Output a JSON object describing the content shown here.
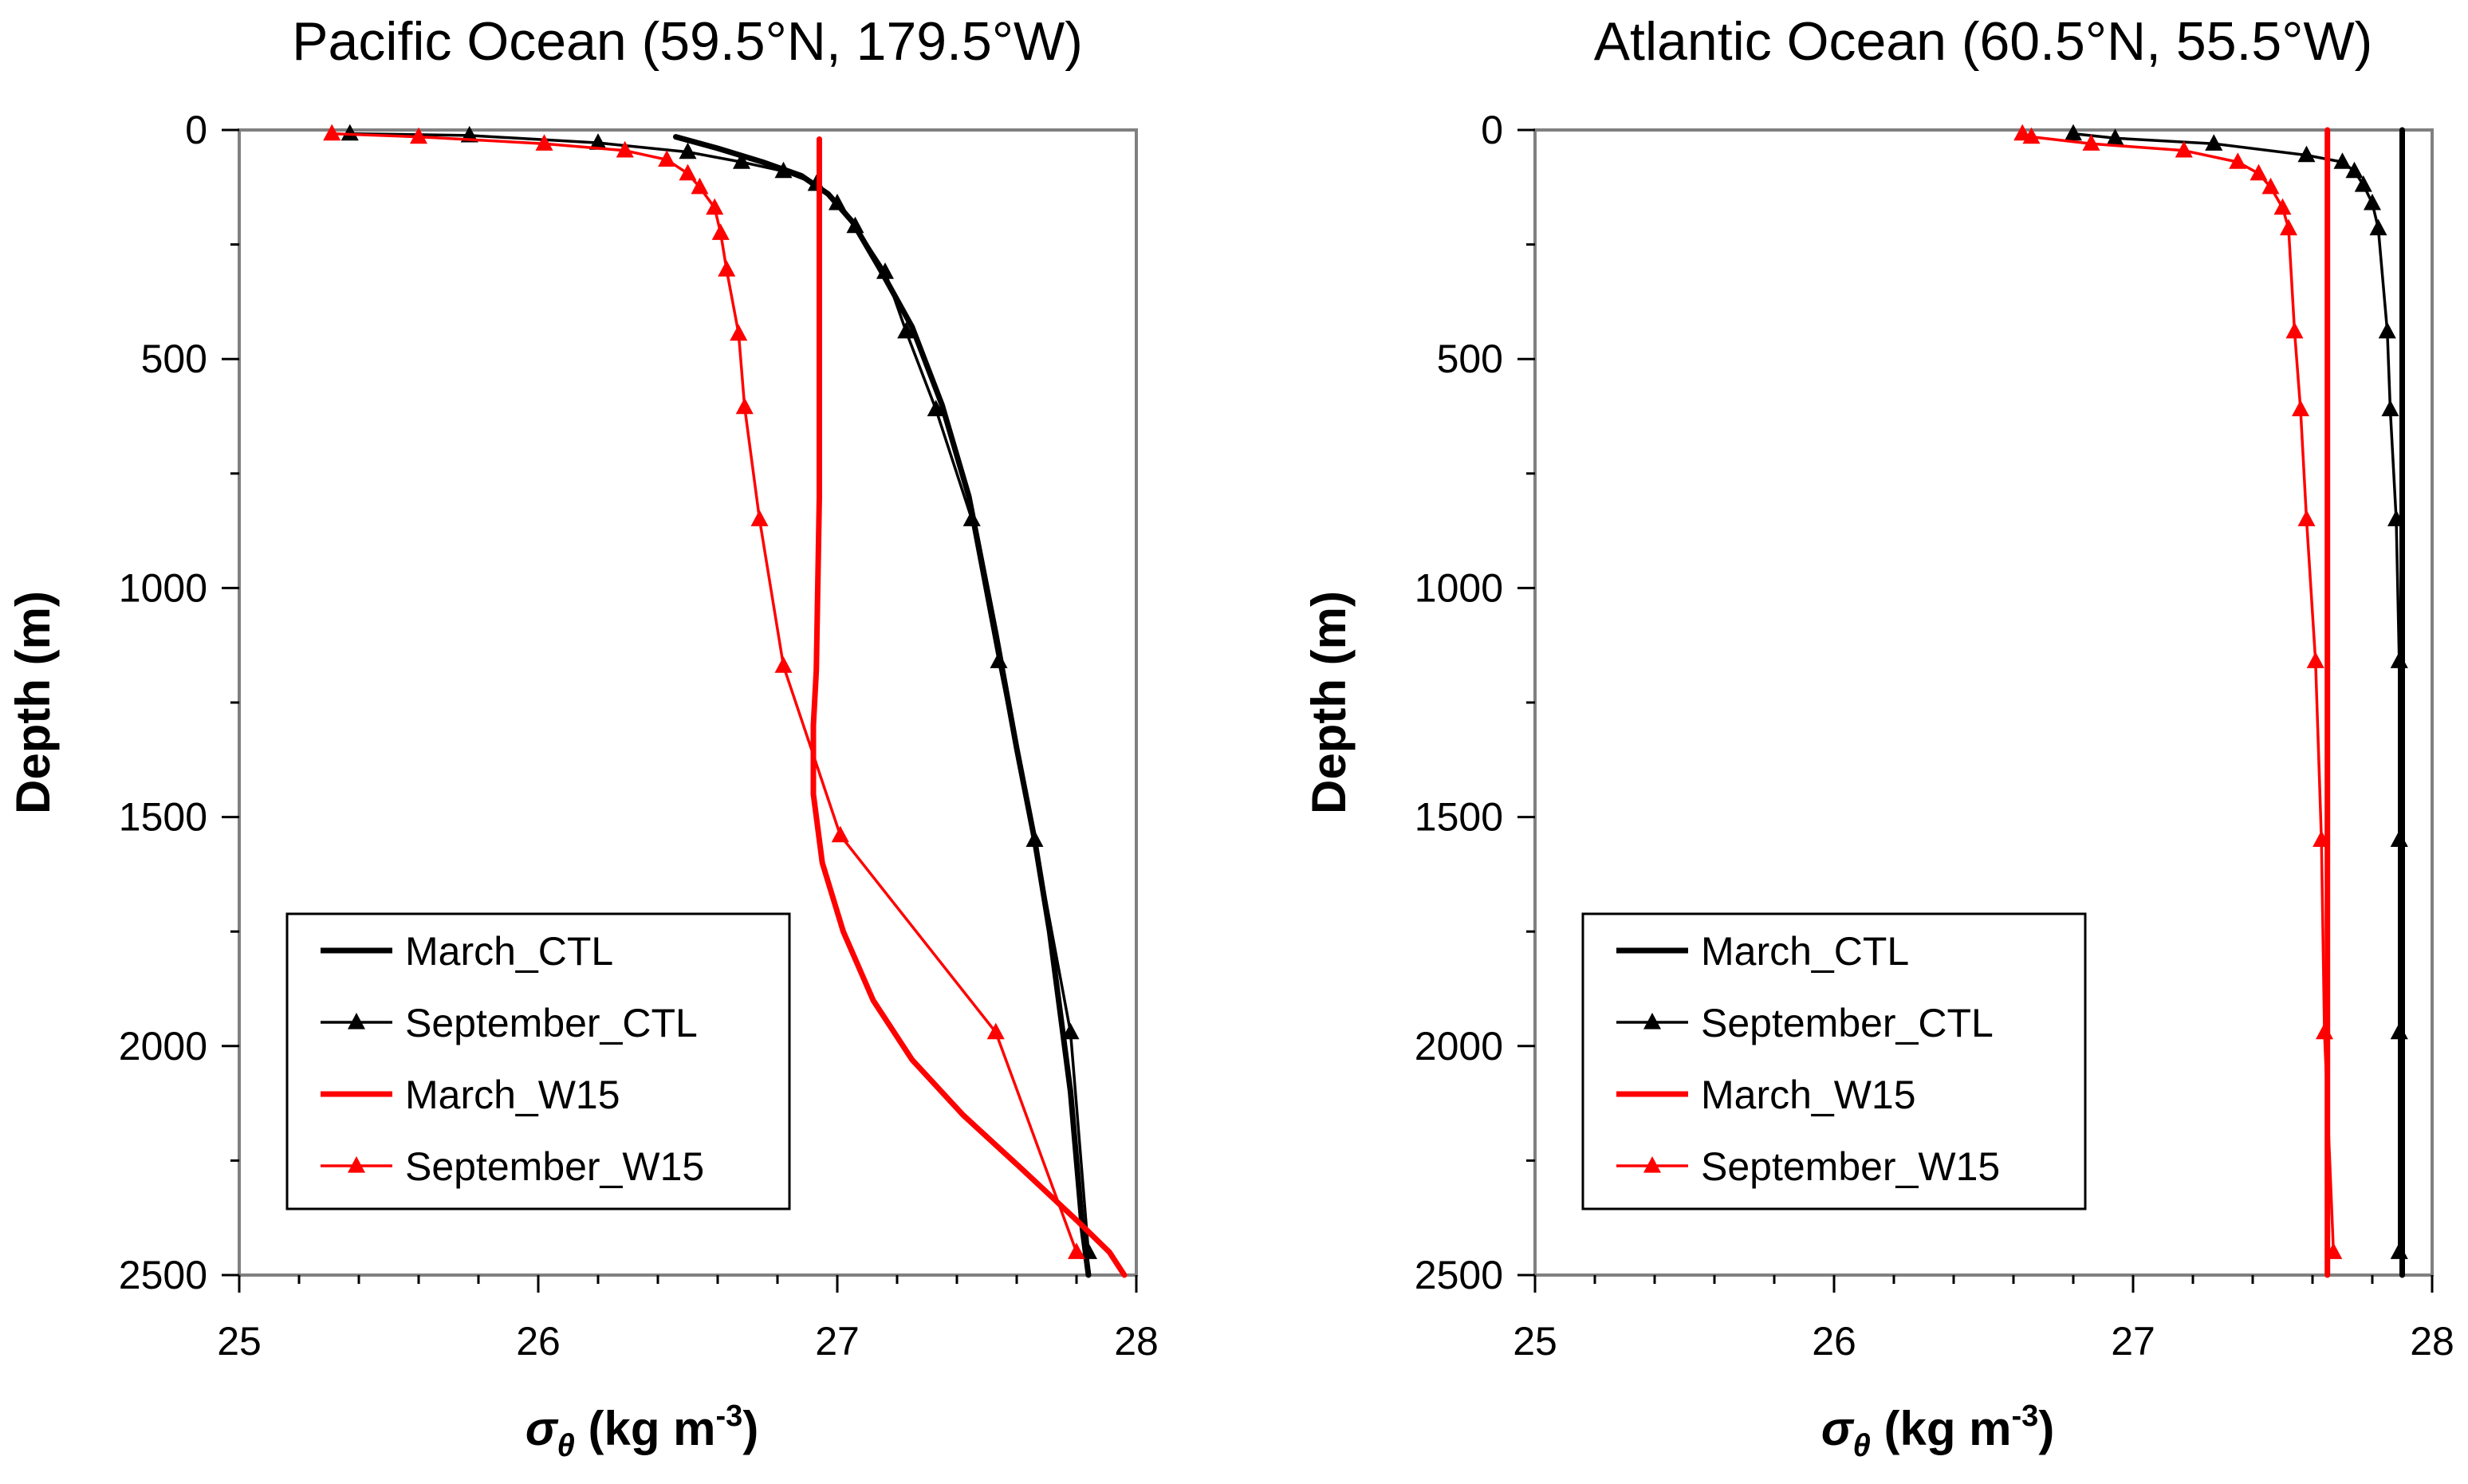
{
  "chart_data": [
    {
      "type": "line",
      "title": "Pacific Ocean (59.5°N, 179.5°W)",
      "xlabel_symbol": "σ",
      "xlabel_sub": "θ",
      "xlabel_unit": " (kg m",
      "xlabel_exp": "-3",
      "xlabel_close": ")",
      "ylabel": "Depth (m)",
      "xlim": [
        25,
        28
      ],
      "ylim": [
        2500,
        0
      ],
      "xticks": [
        25,
        26,
        27,
        28
      ],
      "yticks": [
        0,
        500,
        1000,
        1500,
        2000,
        2500
      ],
      "legend": "lower-left",
      "series": [
        {
          "name": "March_CTL",
          "color": "#000000",
          "markers": false,
          "style": "thick",
          "x": [
            26.46,
            26.6,
            26.75,
            26.88,
            26.97,
            27.05,
            27.14,
            27.25,
            27.35,
            27.44,
            27.53,
            27.6,
            27.66,
            27.71,
            27.75,
            27.78,
            27.8,
            27.82,
            27.84
          ],
          "y": [
            15,
            40,
            70,
            100,
            140,
            200,
            300,
            430,
            600,
            800,
            1100,
            1350,
            1550,
            1750,
            1950,
            2100,
            2250,
            2400,
            2500
          ]
        },
        {
          "name": "September_CTL",
          "color": "#000000",
          "markers": true,
          "style": "thin",
          "x": [
            25.37,
            25.77,
            26.2,
            26.5,
            26.68,
            26.82,
            26.93,
            27.0,
            27.06,
            27.16,
            27.23,
            27.33,
            27.45,
            27.54,
            27.66,
            27.78,
            27.84
          ],
          "y": [
            8,
            12,
            28,
            48,
            70,
            90,
            118,
            160,
            210,
            310,
            440,
            610,
            850,
            1160,
            1550,
            1970,
            2450
          ]
        },
        {
          "name": "March_W15",
          "color": "#ff0000",
          "markers": false,
          "style": "thick",
          "x": [
            26.94,
            26.94,
            26.94,
            26.93,
            26.92,
            26.92,
            26.95,
            27.02,
            27.12,
            27.25,
            27.42,
            27.62,
            27.8,
            27.91,
            27.96
          ],
          "y": [
            20,
            400,
            800,
            1180,
            1300,
            1450,
            1600,
            1750,
            1900,
            2030,
            2150,
            2270,
            2380,
            2450,
            2500
          ]
        },
        {
          "name": "September_W15",
          "color": "#ff0000",
          "markers": true,
          "style": "thin",
          "x": [
            25.31,
            25.6,
            26.02,
            26.29,
            26.43,
            26.5,
            26.54,
            26.59,
            26.61,
            26.63,
            26.67,
            26.69,
            26.74,
            26.82,
            27.01,
            27.53,
            27.8
          ],
          "y": [
            8,
            15,
            30,
            45,
            65,
            95,
            125,
            170,
            225,
            305,
            445,
            605,
            850,
            1170,
            1540,
            1970,
            2450
          ]
        }
      ]
    },
    {
      "type": "line",
      "title": "Atlantic Ocean (60.5°N, 55.5°W)",
      "xlabel_symbol": "σ",
      "xlabel_sub": "θ",
      "xlabel_unit": " (kg m",
      "xlabel_exp": "-3",
      "xlabel_close": ")",
      "ylabel": "Depth (m)",
      "xlim": [
        25,
        28
      ],
      "ylim": [
        2500,
        0
      ],
      "xticks": [
        25,
        26,
        27,
        28
      ],
      "yticks": [
        0,
        500,
        1000,
        1500,
        2000,
        2500
      ],
      "legend": "lower-left",
      "series": [
        {
          "name": "March_CTL",
          "color": "#000000",
          "markers": false,
          "style": "thick",
          "x": [
            27.9,
            27.9
          ],
          "y": [
            0,
            2500
          ]
        },
        {
          "name": "September_CTL",
          "color": "#000000",
          "markers": true,
          "style": "thin",
          "x": [
            26.8,
            26.94,
            27.27,
            27.58,
            27.7,
            27.74,
            27.77,
            27.8,
            27.82,
            27.85,
            27.86,
            27.88,
            27.89,
            27.89,
            27.89,
            27.89
          ],
          "y": [
            8,
            18,
            30,
            55,
            70,
            90,
            120,
            160,
            215,
            440,
            610,
            850,
            1160,
            1550,
            1970,
            2450
          ]
        },
        {
          "name": "March_W15",
          "color": "#ff0000",
          "markers": false,
          "style": "thick",
          "x": [
            27.65,
            27.65
          ],
          "y": [
            0,
            2500
          ]
        },
        {
          "name": "September_W15",
          "color": "#ff0000",
          "markers": true,
          "style": "thin",
          "x": [
            26.63,
            26.66,
            26.86,
            27.17,
            27.35,
            27.42,
            27.46,
            27.5,
            27.52,
            27.54,
            27.56,
            27.58,
            27.61,
            27.63,
            27.64,
            27.67
          ],
          "y": [
            8,
            15,
            30,
            45,
            70,
            95,
            125,
            170,
            215,
            440,
            610,
            850,
            1160,
            1550,
            1970,
            2450
          ]
        }
      ]
    }
  ]
}
